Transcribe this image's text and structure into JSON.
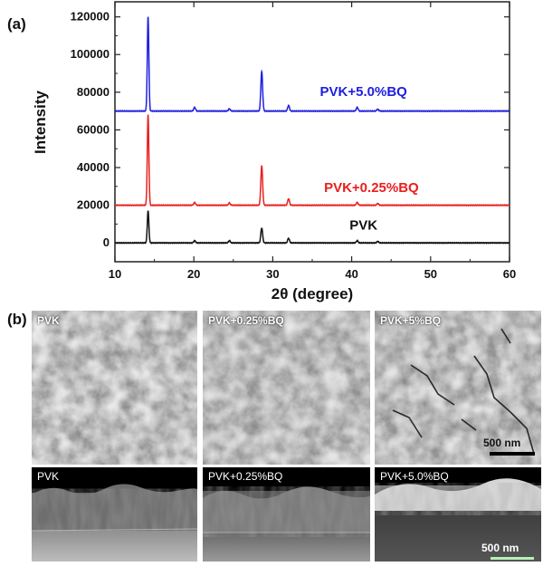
{
  "panel_a_label": "(a)",
  "panel_b_label": "(b)",
  "chart_data": {
    "type": "line",
    "xlabel": "2θ (degree)",
    "ylabel": "Intensity",
    "xlim": [
      10,
      60
    ],
    "ylim": [
      -10000,
      128000
    ],
    "x_ticks": [
      10,
      20,
      30,
      40,
      50,
      60
    ],
    "y_ticks": [
      0,
      20000,
      40000,
      60000,
      80000,
      100000,
      120000
    ],
    "baseline_offsets": [
      0,
      20000,
      70000
    ],
    "peaks": [
      {
        "x": 14.2,
        "heights": [
          17000,
          48000,
          50000
        ]
      },
      {
        "x": 28.6,
        "heights": [
          8000,
          21000,
          21000
        ]
      },
      {
        "x": 32.0,
        "heights": [
          2500,
          3500,
          3000
        ]
      },
      {
        "x": 20.1,
        "heights": [
          1200,
          1500,
          2000
        ]
      },
      {
        "x": 24.5,
        "heights": [
          1200,
          1200,
          1200
        ]
      },
      {
        "x": 40.7,
        "heights": [
          1200,
          1500,
          2000
        ]
      },
      {
        "x": 43.3,
        "heights": [
          800,
          900,
          1000
        ]
      }
    ],
    "series": [
      {
        "name": "PVK",
        "color": "#111111"
      },
      {
        "name": "PVK+0.25%BQ",
        "color": "#e8201e"
      },
      {
        "name": "PVK+5.0%BQ",
        "color": "#1f1fe0"
      }
    ],
    "grid": false
  },
  "sem_top": [
    {
      "label": "PVK"
    },
    {
      "label": "PVK+0.25%BQ"
    },
    {
      "label": "PVK+5%BQ"
    }
  ],
  "sem_cross": [
    {
      "label": "PVK"
    },
    {
      "label": "PVK+0.25%BQ"
    },
    {
      "label": "PVK+5.0%BQ"
    }
  ],
  "scalebar_top": "500 nm",
  "scalebar_cross": "500 nm",
  "colors": {
    "scalebar_top": "#000000",
    "scalebar_cross": "#b6f0b6"
  }
}
